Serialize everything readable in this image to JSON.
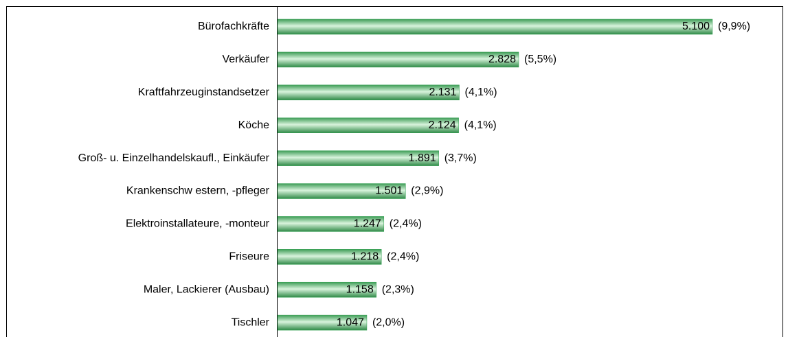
{
  "chart_data": {
    "type": "barh",
    "categories": [
      "Bürofachkräfte",
      "Verkäufer",
      "Kraftfahrzeuginstandsetzer",
      "Köche",
      "Groß- u. Einzelhandelskaufl., Einkäufer",
      "Krankenschw estern, -pfleger",
      "Elektroinstallateure, -monteur",
      "Friseure",
      "Maler, Lackierer (Ausbau)",
      "Tischler"
    ],
    "values": [
      5100,
      2828,
      2131,
      2124,
      1891,
      1501,
      1247,
      1218,
      1158,
      1047
    ],
    "value_labels": [
      "5.100",
      "2.828",
      "2.131",
      "2.124",
      "1.891",
      "1.501",
      "1.247",
      "1.218",
      "1.158",
      "1.047"
    ],
    "share_labels": [
      "(9,9%)",
      "(5,5%)",
      "(4,1%)",
      "(4,1%)",
      "(3,7%)",
      "(2,9%)",
      "(2,4%)",
      "(2,4%)",
      "(2,3%)",
      "(2,0%)"
    ],
    "color": "#2e9e4e",
    "xlim": [
      0,
      5100
    ]
  }
}
